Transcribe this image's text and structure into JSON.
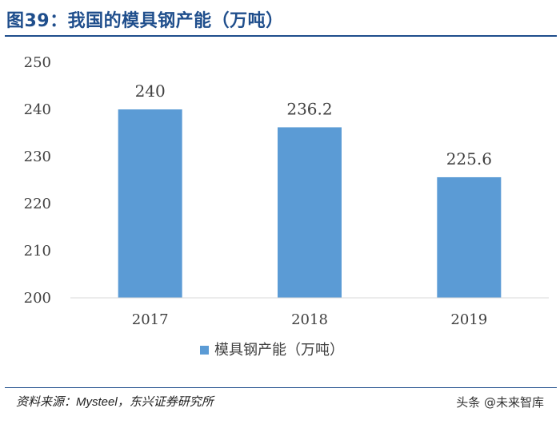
{
  "header": {
    "title": "图39：我国的模具钢产能（万吨）"
  },
  "footer": {
    "source_prefix": "资料来源：",
    "source_brand": "Mysteel",
    "source_suffix": "，东兴证券研究所",
    "watermark": "头条 @未来智库"
  },
  "colors": {
    "title": "#1f4e8c",
    "bar": "#5b9bd5",
    "gridline": "#d9d9d9",
    "text": "#404040"
  },
  "chart_data": {
    "type": "bar",
    "categories": [
      "2017",
      "2018",
      "2019"
    ],
    "series": [
      {
        "name": "模具钢产能（万吨）",
        "values": [
          240,
          236.2,
          225.6
        ]
      }
    ],
    "data_labels": [
      "240",
      "236.2",
      "225.6"
    ],
    "ylim": [
      200,
      250
    ],
    "yticks": [
      200,
      210,
      220,
      230,
      240,
      250
    ],
    "grid": false,
    "legend_position": "bottom"
  }
}
